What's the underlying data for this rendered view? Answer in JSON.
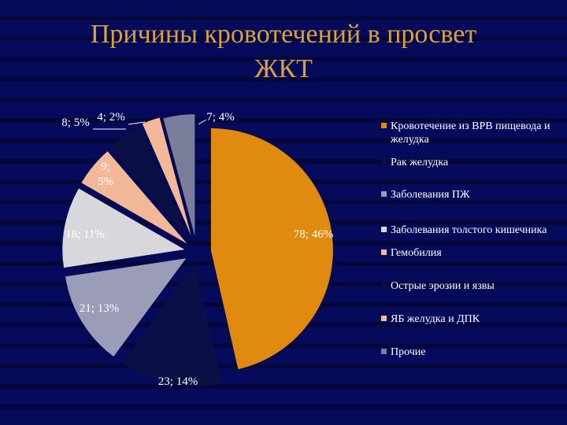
{
  "slide": {
    "title_line1": "Причины  кровотечений  в  просвет",
    "title_line2": "ЖКТ"
  },
  "colors": {
    "background": "#060a5a",
    "title": "#d8a238",
    "text": "#ffffff"
  },
  "chart_data": {
    "type": "pie",
    "title": "",
    "series": [
      {
        "name": "Кровотечение из ВРВ пищевода и желудка",
        "value": 78,
        "percent": 46,
        "label": "78; 46%",
        "color": "#e08a10"
      },
      {
        "name": "Рак желудка",
        "value": 23,
        "percent": 14,
        "label": "23; 14%",
        "color": "#0a0f45"
      },
      {
        "name": "Заболевания ПЖ",
        "value": 21,
        "percent": 13,
        "label": "21; 13%",
        "color": "#9a9cb8"
      },
      {
        "name": "Заболевания толстого кишечника",
        "value": 18,
        "percent": 11,
        "label": "18; 11%",
        "color": "#d8d8dc"
      },
      {
        "name": "Гемобилия",
        "value": 9,
        "percent": 5,
        "label": "9; 5%",
        "color": "#f2b898"
      },
      {
        "name": "Острые эрозии и язвы",
        "value": 8,
        "percent": 5,
        "label": "8; 5%",
        "color": "#0a0f45"
      },
      {
        "name": "ЯБ желудка и ДПК",
        "value": 4,
        "percent": 2,
        "label": "4; 2%",
        "color": "#f2b898"
      },
      {
        "name": "Прочие",
        "value": 7,
        "percent": 4,
        "label": "7; 4%",
        "color": "#7a7e9a"
      }
    ],
    "legend_position": "right",
    "exploded": true
  }
}
